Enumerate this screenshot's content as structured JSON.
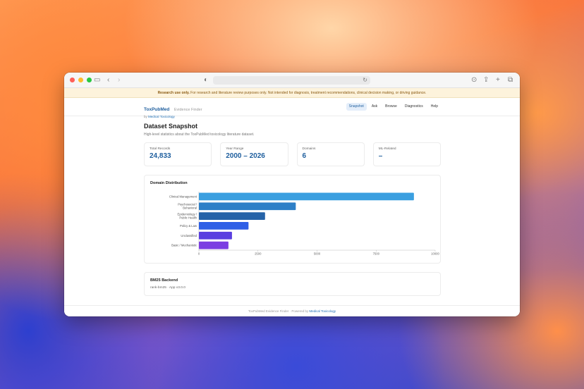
{
  "banner": {
    "strong": "Research use only.",
    "text": " For research and literature review purposes only. Not intended for diagnosis, treatment recommendations, clinical decision making, or driving guidance."
  },
  "brand": {
    "title": "ToxPubMed",
    "subtitle": "Evidence Finder",
    "by": "by ",
    "by_link": "Medical Toxicology"
  },
  "nav": [
    {
      "label": "Snapshot",
      "active": true
    },
    {
      "label": "Ask",
      "active": false
    },
    {
      "label": "Browse",
      "active": false
    },
    {
      "label": "Diagnostics",
      "active": false
    },
    {
      "label": "Help",
      "active": false
    }
  ],
  "page": {
    "title": "Dataset Snapshot",
    "subtitle": "High-level statistics about the ToxPubMed toxicology literature dataset."
  },
  "stats": [
    {
      "label": "Total Records",
      "value": "24,833"
    },
    {
      "label": "Year Range",
      "value": "2000 – 2026"
    },
    {
      "label": "Domains",
      "value": "6"
    },
    {
      "label": "ML-Related",
      "value": "–"
    }
  ],
  "chart_card": {
    "title": "Domain Distribution"
  },
  "chart_data": {
    "type": "bar",
    "orientation": "horizontal",
    "categories": [
      "Clinical Management",
      "Psychosocial / Behavioral",
      "Epidemiology / Public Health",
      "Policy & Law",
      "Unclassified",
      "Basic / Mechanistic"
    ],
    "values": [
      9100,
      4100,
      2800,
      2100,
      1400,
      1250
    ],
    "colors": [
      "#3b9fe0",
      "#2d7fc7",
      "#2563a8",
      "#2f5fe6",
      "#5a3fe0",
      "#7b3ee2"
    ],
    "xticks": [
      0,
      2500,
      5000,
      7500,
      10000
    ],
    "xtick_labels": [
      "0",
      "2500",
      "5000",
      "7500",
      "10000"
    ],
    "xlim": [
      0,
      10000
    ],
    "title": "",
    "xlabel": "",
    "ylabel": "",
    "grid": false
  },
  "backend": {
    "title": "BM25 Backend",
    "subtitle": "rank-bm25 · App v3.0.0"
  },
  "footer": {
    "text": "ToxPubMed Evidence Finder  ·  Powered by ",
    "link": "Medical Toxicology"
  }
}
